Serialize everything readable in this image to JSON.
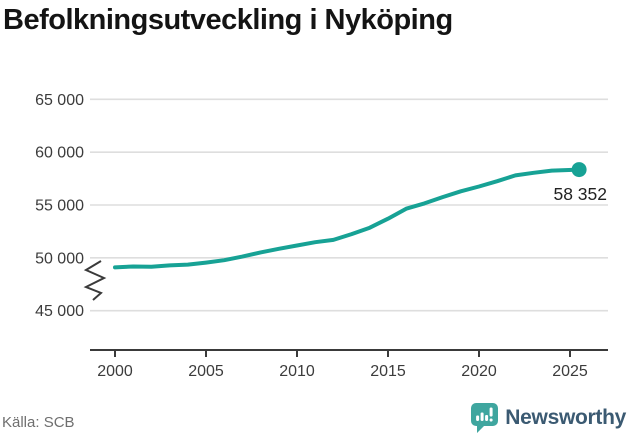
{
  "title": "Befolkningsutveckling i Nyköping",
  "source": "Källa: SCB",
  "brand": {
    "name": "Newsworthy",
    "icon": "newsworthy-bar-chart-bubble-icon",
    "icon_color": "#3fa69f",
    "icon_glyph_color": "#ffffff",
    "text_color": "#3b5a72"
  },
  "chart_data": {
    "type": "line",
    "title": "Befolkningsutveckling i Nyköping",
    "xlabel": "",
    "ylabel": "",
    "legend": "none",
    "grid": "horizontal",
    "gridline_color": "#dedede",
    "axis_color": "#3a3a3a",
    "tick_label_color": "#3c3c3c",
    "line_color": "#17a295",
    "line_width": 4,
    "axis_break": true,
    "xlim": [
      1998.6,
      2027.1
    ],
    "ylim": [
      43900,
      67000
    ],
    "x_ticks": [
      2000,
      2005,
      2010,
      2015,
      2020,
      2025
    ],
    "y_ticks": [
      {
        "value": 65000,
        "label": "65 000"
      },
      {
        "value": 60000,
        "label": "60 000"
      },
      {
        "value": 55000,
        "label": "55 000"
      },
      {
        "value": 50000,
        "label": "50 000"
      },
      {
        "value": 45000,
        "label": "45 000"
      }
    ],
    "series": [
      {
        "name": "Befolkning",
        "points": [
          [
            2000,
            49100
          ],
          [
            2001,
            49180
          ],
          [
            2002,
            49160
          ],
          [
            2003,
            49290
          ],
          [
            2004,
            49360
          ],
          [
            2005,
            49550
          ],
          [
            2006,
            49780
          ],
          [
            2007,
            50120
          ],
          [
            2008,
            50520
          ],
          [
            2009,
            50860
          ],
          [
            2010,
            51170
          ],
          [
            2011,
            51480
          ],
          [
            2012,
            51700
          ],
          [
            2013,
            52250
          ],
          [
            2014,
            52850
          ],
          [
            2015,
            53700
          ],
          [
            2016,
            54650
          ],
          [
            2017,
            55150
          ],
          [
            2018,
            55750
          ],
          [
            2019,
            56300
          ],
          [
            2020,
            56750
          ],
          [
            2021,
            57250
          ],
          [
            2022,
            57800
          ],
          [
            2023,
            58050
          ],
          [
            2024,
            58250
          ],
          [
            2025.5,
            58352
          ]
        ]
      }
    ],
    "end_label": "58 352",
    "end_value": 58352,
    "end_x": 2025.5
  }
}
